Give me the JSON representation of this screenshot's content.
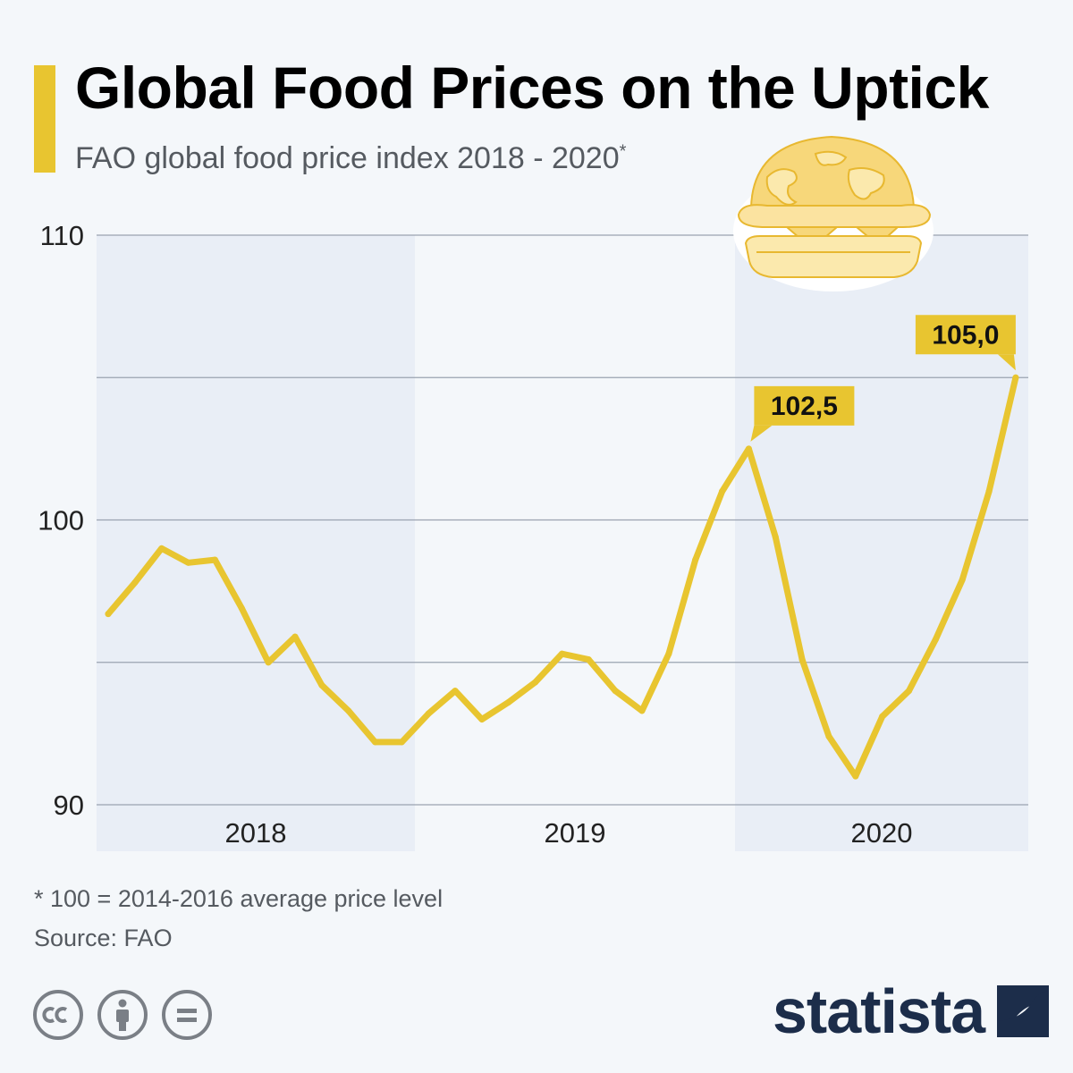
{
  "title": "Global Food Prices on the Uptick",
  "subtitle": "FAO global food price index 2018 - 2020",
  "subtitle_marker": "*",
  "footnote": "* 100 = 2014-2016 average price level",
  "source": "Source: FAO",
  "brand": "statista",
  "icons": {
    "license": [
      "cc-icon",
      "by-attribution-icon",
      "nd-equals-icon"
    ],
    "illustration": "globe-burger-icon",
    "brand_mark": "statista-logo-icon"
  },
  "colors": {
    "accent": "#e8c530",
    "line": "#e8c530",
    "band": "#e9eef6",
    "grid": "#9aa3b0",
    "brand": "#1c2d4a"
  },
  "chart_data": {
    "type": "line",
    "title": "Global Food Prices on the Uptick",
    "subtitle": "FAO global food price index 2018 - 2020",
    "xlabel": "",
    "ylabel": "",
    "ylim": [
      90,
      110
    ],
    "yticks": [
      90,
      95,
      100,
      105,
      110
    ],
    "ytick_labels": [
      "90",
      "",
      "100",
      "",
      "110"
    ],
    "grid": true,
    "legend": "none",
    "year_labels": [
      "2018",
      "2019",
      "2020"
    ],
    "x": [
      "2018-01",
      "2018-02",
      "2018-03",
      "2018-04",
      "2018-05",
      "2018-06",
      "2018-07",
      "2018-08",
      "2018-09",
      "2018-10",
      "2018-11",
      "2018-12",
      "2019-01",
      "2019-02",
      "2019-03",
      "2019-04",
      "2019-05",
      "2019-06",
      "2019-07",
      "2019-08",
      "2019-09",
      "2019-10",
      "2019-11",
      "2019-12",
      "2020-01",
      "2020-02",
      "2020-03",
      "2020-04",
      "2020-05",
      "2020-06",
      "2020-07",
      "2020-08",
      "2020-09",
      "2020-10",
      "2020-11"
    ],
    "series": [
      {
        "values": [
          96.7,
          97.8,
          99.0,
          98.5,
          98.6,
          96.9,
          95.0,
          95.9,
          94.2,
          93.3,
          92.2,
          92.2,
          93.2,
          94.0,
          93.0,
          93.6,
          94.3,
          95.3,
          95.1,
          94.0,
          93.3,
          95.3,
          98.6,
          101.0,
          102.5,
          99.4,
          95.1,
          92.4,
          91.0,
          93.1,
          94.0,
          95.8,
          97.9,
          101.0,
          105.0
        ]
      }
    ],
    "annotations": [
      {
        "x": "2020-01",
        "y": 102.5,
        "label": "102,5"
      },
      {
        "x": "2020-11",
        "y": 105.0,
        "label": "105,0"
      }
    ]
  }
}
